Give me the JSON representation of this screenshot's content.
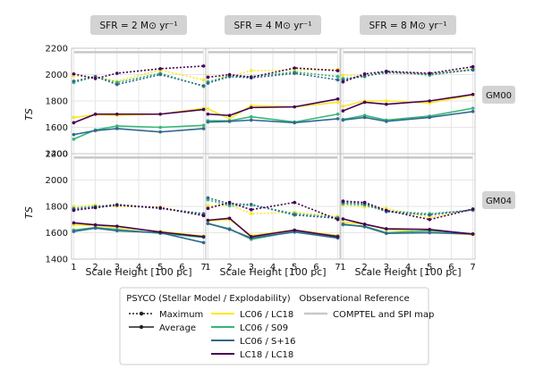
{
  "chart_data": {
    "type": "line",
    "column_titles": [
      "SFR = 2 M⊙ yr⁻¹",
      "SFR = 4 M⊙ yr⁻¹",
      "SFR = 8 M⊙ yr⁻¹"
    ],
    "row_labels": [
      "GM00",
      "GM04"
    ],
    "xlabel": "Scale Height [100 pc]",
    "ylabel": "TS",
    "x": [
      1,
      2,
      3,
      5,
      7
    ],
    "xticks": [
      1,
      2,
      3,
      4,
      5,
      6,
      7
    ],
    "xlim": [
      0.9,
      7.1
    ],
    "ylim": [
      1400,
      2200
    ],
    "yticks": [
      1400,
      1600,
      1800,
      2000,
      2200
    ],
    "grid": true,
    "reference_value": 2170,
    "colors": {
      "LC06 / LC18": "#fde725",
      "LC06 / S09": "#35b779",
      "LC06 / S+16": "#31688e",
      "LC18 / LC18": "#440154",
      "reference": "#c8c8c8"
    },
    "panels": [
      {
        "row": "GM00",
        "sfr": "SFR = 2 M⊙ yr⁻¹",
        "series": [
          {
            "name": "LC06 / LC18",
            "max": [
              1990,
              1980,
              1950,
              2035,
              1960
            ],
            "avg": [
              1675,
              1695,
              1690,
              1700,
              1745
            ]
          },
          {
            "name": "LC06 / S09",
            "max": [
              1940,
              1985,
              1940,
              2010,
              1910
            ],
            "avg": [
              1510,
              1580,
              1610,
              1600,
              1615
            ]
          },
          {
            "name": "LC06 / S+16",
            "max": [
              1950,
              1985,
              1925,
              2000,
              1915
            ],
            "avg": [
              1545,
              1575,
              1590,
              1565,
              1590
            ]
          },
          {
            "name": "LC18 / LC18",
            "max": [
              2005,
              1970,
              2010,
              2045,
              2065
            ],
            "avg": [
              1635,
              1700,
              1700,
              1700,
              1735
            ]
          }
        ]
      },
      {
        "row": "GM00",
        "sfr": "SFR = 4 M⊙ yr⁻¹",
        "series": [
          {
            "name": "LC06 / LC18",
            "max": [
              1985,
              1985,
              2030,
              2035,
              2040
            ],
            "avg": [
              1740,
              1665,
              1765,
              1755,
              1790
            ]
          },
          {
            "name": "LC06 / S09",
            "max": [
              1945,
              1990,
              1985,
              2020,
              1985
            ],
            "avg": [
              1650,
              1650,
              1680,
              1640,
              1700
            ]
          },
          {
            "name": "LC06 / S+16",
            "max": [
              1935,
              1985,
              1975,
              2010,
              1960
            ],
            "avg": [
              1640,
              1645,
              1655,
              1635,
              1665
            ]
          },
          {
            "name": "LC18 / LC18",
            "max": [
              1980,
              2000,
              1980,
              2050,
              2030
            ],
            "avg": [
              1700,
              1690,
              1750,
              1755,
              1815
            ]
          }
        ]
      },
      {
        "row": "GM00",
        "sfr": "SFR = 8 M⊙ yr⁻¹",
        "series": [
          {
            "name": "LC06 / LC18",
            "max": [
              1995,
              1990,
              2015,
              2000,
              2045
            ],
            "avg": [
              1760,
              1800,
              1800,
              1785,
              1845
            ]
          },
          {
            "name": "LC06 / S09",
            "max": [
              1970,
              1985,
              2025,
              1995,
              2040
            ],
            "avg": [
              1660,
              1690,
              1655,
              1685,
              1745
            ]
          },
          {
            "name": "LC06 / S+16",
            "max": [
              1960,
              1990,
              2015,
              2005,
              2035
            ],
            "avg": [
              1655,
              1675,
              1645,
              1675,
              1720
            ]
          },
          {
            "name": "LC18 / LC18",
            "max": [
              1945,
              2005,
              2025,
              2010,
              2060
            ],
            "avg": [
              1725,
              1790,
              1775,
              1800,
              1850
            ]
          }
        ]
      },
      {
        "row": "GM04",
        "sfr": "SFR = 2 M⊙ yr⁻¹",
        "series": [
          {
            "name": "LC06 / LC18",
            "max": [
              1800,
              1810,
              1800,
              1795,
              1730
            ],
            "avg": [
              1660,
              1655,
              1640,
              1610,
              1575
            ]
          },
          {
            "name": "LC06 / S09",
            "max": [
              1785,
              1800,
              1815,
              1785,
              1740
            ],
            "avg": [
              1620,
              1640,
              1625,
              1595,
              1565
            ]
          },
          {
            "name": "LC06 / S+16",
            "max": [
              1780,
              1795,
              1810,
              1785,
              1745
            ],
            "avg": [
              1610,
              1635,
              1615,
              1600,
              1525
            ]
          },
          {
            "name": "LC18 / LC18",
            "max": [
              1770,
              1790,
              1810,
              1790,
              1730
            ],
            "avg": [
              1675,
              1660,
              1650,
              1605,
              1570
            ]
          }
        ]
      },
      {
        "row": "GM04",
        "sfr": "SFR = 4 M⊙ yr⁻¹",
        "series": [
          {
            "name": "LC06 / LC18",
            "max": [
              1805,
              1810,
              1745,
              1755,
              1725
            ],
            "avg": [
              1690,
              1700,
              1580,
              1620,
              1580
            ]
          },
          {
            "name": "LC06 / S09",
            "max": [
              1850,
              1805,
              1810,
              1745,
              1715
            ],
            "avg": [
              1670,
              1630,
              1550,
              1610,
              1575
            ]
          },
          {
            "name": "LC06 / S+16",
            "max": [
              1865,
              1820,
              1815,
              1735,
              1710
            ],
            "avg": [
              1670,
              1625,
              1560,
              1605,
              1560
            ]
          },
          {
            "name": "LC18 / LC18",
            "max": [
              1785,
              1830,
              1775,
              1830,
              1700
            ],
            "avg": [
              1695,
              1710,
              1570,
              1620,
              1570
            ]
          }
        ]
      },
      {
        "row": "GM04",
        "sfr": "SFR = 8 M⊙ yr⁻¹",
        "series": [
          {
            "name": "LC06 / LC18",
            "max": [
              1810,
              1795,
              1785,
              1715,
              1780
            ],
            "avg": [
              1680,
              1665,
              1625,
              1605,
              1585
            ]
          },
          {
            "name": "LC06 / S09",
            "max": [
              1820,
              1810,
              1765,
              1745,
              1770
            ],
            "avg": [
              1660,
              1650,
              1600,
              1615,
              1590
            ]
          },
          {
            "name": "LC06 / S+16",
            "max": [
              1830,
              1820,
              1760,
              1735,
              1775
            ],
            "avg": [
              1665,
              1645,
              1595,
              1600,
              1590
            ]
          },
          {
            "name": "LC18 / LC18",
            "max": [
              1840,
              1830,
              1770,
              1700,
              1780
            ],
            "avg": [
              1705,
              1665,
              1630,
              1625,
              1590
            ]
          }
        ]
      }
    ],
    "legend": {
      "placement": "bottom-center",
      "psyco_title": "PSYCO (Stellar Model / Explodability)",
      "maximum_label": "Maximum",
      "average_label": "Average",
      "obs_title": "Observational Reference",
      "obs_label": "COMPTEL and SPI map",
      "series_names": [
        "LC06 / LC18",
        "LC06 / S09",
        "LC06 / S+16",
        "LC18 / LC18"
      ]
    }
  }
}
